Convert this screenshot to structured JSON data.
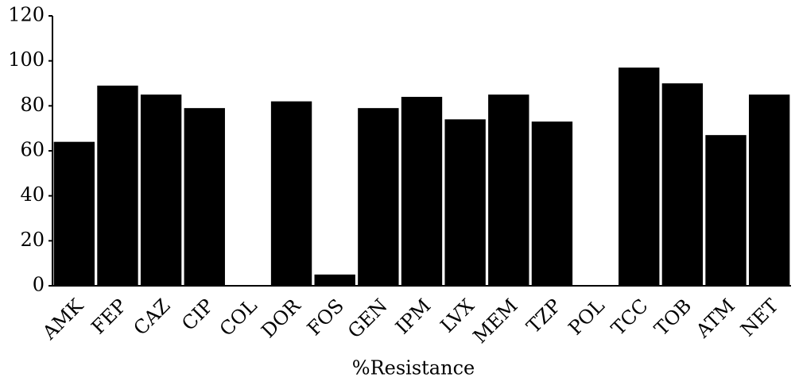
{
  "chart_data": {
    "type": "bar",
    "x_label": "%Resistance",
    "categories": [
      "AMK",
      "FEP",
      "CAZ",
      "CIP",
      "COL",
      "DOR",
      "FOS",
      "GEN",
      "IPM",
      "LVX",
      "MEM",
      "TZP",
      "POL",
      "TCC",
      "TOB",
      "ATM",
      "NET"
    ],
    "values": [
      64,
      89,
      85,
      79,
      0,
      82,
      5,
      79,
      84,
      74,
      85,
      73,
      0,
      97,
      90,
      67,
      85
    ],
    "color": "#000000",
    "ylim": [
      0,
      120
    ],
    "yticks": [
      0,
      20,
      40,
      60,
      80,
      100,
      120
    ],
    "grid": false
  }
}
